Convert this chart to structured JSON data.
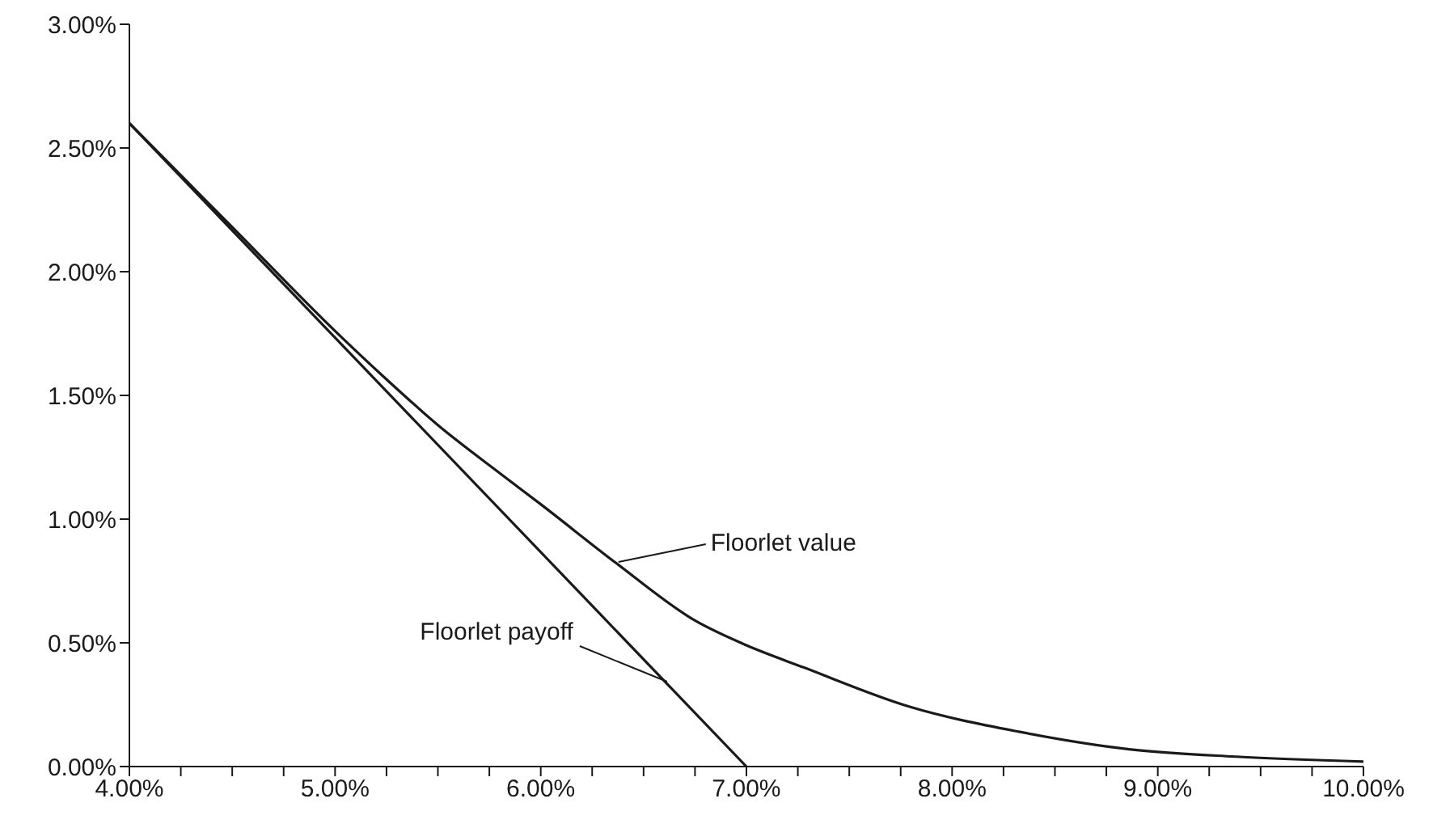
{
  "chart_data": {
    "type": "line",
    "xlim": [
      4,
      10
    ],
    "ylim": [
      0,
      3
    ],
    "xticks": [
      {
        "value": 4,
        "label": "4.00%"
      },
      {
        "value": 4.25,
        "label": null
      },
      {
        "value": 4.5,
        "label": null
      },
      {
        "value": 4.75,
        "label": null
      },
      {
        "value": 5,
        "label": "5.00%"
      },
      {
        "value": 5.25,
        "label": null
      },
      {
        "value": 5.5,
        "label": null
      },
      {
        "value": 5.75,
        "label": null
      },
      {
        "value": 6,
        "label": "6.00%"
      },
      {
        "value": 6.25,
        "label": null
      },
      {
        "value": 6.5,
        "label": null
      },
      {
        "value": 6.75,
        "label": null
      },
      {
        "value": 7,
        "label": "7.00%"
      },
      {
        "value": 7.25,
        "label": null
      },
      {
        "value": 7.5,
        "label": null
      },
      {
        "value": 7.75,
        "label": null
      },
      {
        "value": 8,
        "label": "8.00%"
      },
      {
        "value": 8.25,
        "label": null
      },
      {
        "value": 8.5,
        "label": null
      },
      {
        "value": 8.75,
        "label": null
      },
      {
        "value": 9,
        "label": "9.00%"
      },
      {
        "value": 9.25,
        "label": null
      },
      {
        "value": 9.5,
        "label": null
      },
      {
        "value": 9.75,
        "label": null
      },
      {
        "value": 10,
        "label": "10.00%"
      }
    ],
    "yticks": [
      {
        "value": 0,
        "label": "0.00%"
      },
      {
        "value": 0.5,
        "label": "0.50%"
      },
      {
        "value": 1,
        "label": "1.00%"
      },
      {
        "value": 1.5,
        "label": "1.50%"
      },
      {
        "value": 2,
        "label": "2.00%"
      },
      {
        "value": 2.5,
        "label": "2.50%"
      },
      {
        "value": 3,
        "label": "3.00%"
      }
    ],
    "marker": "none",
    "line_style": "solid",
    "series": [
      {
        "color": "#1a1a1a",
        "x": [
          4,
          4.5,
          5,
          5.23,
          5.5,
          5.81,
          6,
          6.37,
          6.75,
          7,
          7.28,
          7.8,
          8.33,
          8.86,
          9.38,
          10
        ],
        "values": [
          2.6,
          2.18,
          1.76,
          1.58,
          1.38,
          1.18,
          1.06,
          0.82,
          0.59,
          0.49,
          0.4,
          0.24,
          0.14,
          0.07,
          0.04,
          0.02
        ]
      },
      {
        "color": "#1a1a1a",
        "x": [
          4,
          7
        ],
        "values": [
          2.6,
          0
        ]
      }
    ],
    "annotations": [
      {
        "text": "Floorlet value",
        "x": 6.37,
        "y": 0.82
      },
      {
        "text": "Floorlet payoff",
        "x": 6.63,
        "y": 0.33
      }
    ]
  }
}
